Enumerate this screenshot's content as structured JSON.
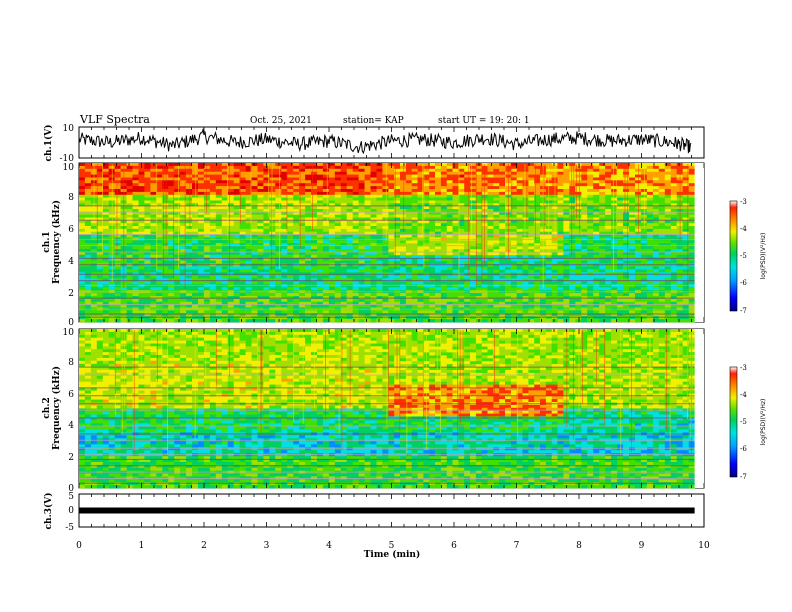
{
  "header": {
    "title": "VLF Spectra",
    "date": "Oct. 25, 2021",
    "station": "station= KAP",
    "start": "start  UT =   19: 20: 1"
  },
  "colors": {
    "spectrum": [
      "#000080",
      "#0000ff",
      "#008cff",
      "#00e0e0",
      "#00d060",
      "#40e000",
      "#a0e000",
      "#f0f000",
      "#ffa000",
      "#ff3000",
      "#e00000"
    ],
    "trace": "#000000"
  },
  "chart_data": [
    {
      "id": "ch1-voltage",
      "type": "line",
      "ylabel": "ch.1(V)",
      "ylim": [
        -10,
        10
      ],
      "y_ticks": [
        "10",
        "-10"
      ],
      "xlim": [
        0,
        10
      ],
      "description_of_signal": "noisy trace centered near 0 V",
      "x": [
        0,
        0.5,
        1,
        1.5,
        2,
        2.5,
        3,
        3.5,
        4,
        4.5,
        5,
        5.5,
        6,
        6.5,
        7,
        7.5,
        8,
        8.5,
        9,
        9.5,
        9.8
      ],
      "y": [
        2,
        0,
        3,
        -2,
        4,
        0,
        2,
        -1,
        1,
        -3,
        1,
        2,
        0,
        3,
        -1,
        2,
        3,
        1,
        2,
        0,
        -3
      ]
    },
    {
      "id": "ch1-spectrogram",
      "type": "heatmap",
      "ylabel": "ch.1\nFrequency  (kHz)",
      "ylim": [
        0,
        10
      ],
      "y_ticks": [
        "0",
        "2",
        "4",
        "6",
        "8",
        "10"
      ],
      "xlim": [
        0,
        9.85
      ],
      "colorbar": {
        "label": "log(PSD)(V²/Hz)",
        "range": [
          -7,
          -3
        ],
        "ticks": [
          "-3",
          "-4",
          "-5",
          "-6",
          "-7"
        ]
      },
      "segments": [
        {
          "x_range": [
            0,
            4.95
          ],
          "bands": [
            [
              8,
              10,
              -3.6
            ],
            [
              5.5,
              8,
              -4.6
            ],
            [
              3.5,
              5.5,
              -5.2
            ],
            [
              2,
              3.5,
              -5.4
            ],
            [
              0,
              2,
              -5.0
            ]
          ]
        },
        {
          "x_range": [
            4.95,
            7.75
          ],
          "bands": [
            [
              8,
              10,
              -3.8
            ],
            [
              5.5,
              8,
              -4.8
            ],
            [
              4.2,
              5.5,
              -4.5
            ],
            [
              2,
              4.2,
              -5.4
            ],
            [
              0,
              2,
              -5.0
            ]
          ]
        },
        {
          "x_range": [
            7.75,
            9.85
          ],
          "bands": [
            [
              8,
              10,
              -3.9
            ],
            [
              5.5,
              8,
              -4.8
            ],
            [
              3.5,
              5.5,
              -5.3
            ],
            [
              2,
              3.5,
              -5.4
            ],
            [
              0,
              2,
              -5.0
            ]
          ]
        }
      ],
      "lines_khz": [
        0.3,
        0.5,
        0.8,
        1.1,
        1.5,
        1.9,
        2.3,
        2.6,
        3.0,
        3.6,
        4.0,
        4.4,
        4.8,
        5.2,
        5.5,
        6.4,
        6.9,
        7.3
      ]
    },
    {
      "id": "ch2-spectrogram",
      "type": "heatmap",
      "ylabel": "ch.2\nFrequency  (kHz)",
      "ylim": [
        0,
        10
      ],
      "y_ticks": [
        "0",
        "2",
        "4",
        "6",
        "8",
        "10"
      ],
      "xlim": [
        0,
        9.85
      ],
      "colorbar": {
        "label": "log(PSD)(V²/Hz)",
        "range": [
          -7,
          -3
        ],
        "ticks": [
          "-3",
          "-4",
          "-5",
          "-6",
          "-7"
        ]
      },
      "segments": [
        {
          "x_range": [
            0,
            4.95
          ],
          "bands": [
            [
              8,
              10,
              -4.6
            ],
            [
              5,
              8,
              -4.5
            ],
            [
              3.5,
              5,
              -5.3
            ],
            [
              2,
              3.5,
              -5.6
            ],
            [
              0,
              2,
              -5.1
            ]
          ]
        },
        {
          "x_range": [
            4.95,
            7.75
          ],
          "bands": [
            [
              6.5,
              10,
              -4.6
            ],
            [
              4.5,
              6.5,
              -3.8
            ],
            [
              3.5,
              4.5,
              -5.3
            ],
            [
              2,
              3.5,
              -5.6
            ],
            [
              0,
              2,
              -5.1
            ]
          ]
        },
        {
          "x_range": [
            7.75,
            9.85
          ],
          "bands": [
            [
              8,
              10,
              -4.7
            ],
            [
              5,
              8,
              -4.6
            ],
            [
              3.5,
              5,
              -5.5
            ],
            [
              2,
              3.5,
              -5.7
            ],
            [
              0,
              2,
              -5.1
            ]
          ]
        }
      ],
      "lines_khz": [
        0.3,
        0.6,
        1.0,
        1.4,
        1.8,
        2.1,
        2.5,
        3.0,
        3.4,
        3.9,
        4.4,
        4.9,
        5.3,
        5.8,
        6.3,
        7.1,
        7.6
      ]
    },
    {
      "id": "ch3-voltage",
      "type": "line",
      "ylabel": "ch.3(V)",
      "ylim": [
        -5,
        5
      ],
      "y_ticks": [
        "5",
        "0",
        "-5"
      ],
      "xlim": [
        0,
        10
      ],
      "x": [
        0,
        9.85
      ],
      "y": [
        0,
        0
      ]
    }
  ],
  "x_axis": {
    "label": "Time  (min)",
    "ticks": [
      "0",
      "1",
      "2",
      "3",
      "4",
      "5",
      "6",
      "7",
      "8",
      "9",
      "10"
    ]
  }
}
